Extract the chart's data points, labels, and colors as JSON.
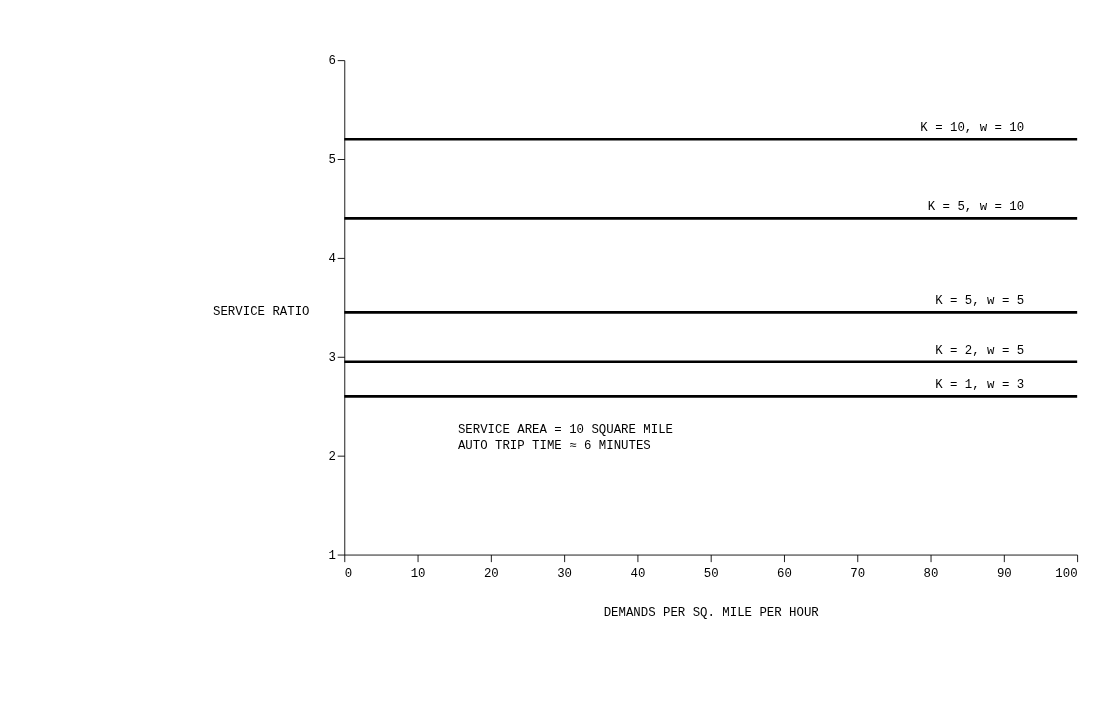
{
  "chart_data": {
    "type": "line",
    "xlabel": "DEMANDS PER SQ. MILE PER HOUR",
    "ylabel": "SERVICE RATIO",
    "xlim": [
      0,
      100
    ],
    "xticks": [
      0,
      10,
      20,
      30,
      40,
      50,
      60,
      70,
      80,
      90,
      100
    ],
    "ylim": [
      1,
      6
    ],
    "yticks": [
      1,
      2,
      3,
      4,
      5,
      6
    ],
    "grid": false,
    "marker": "none",
    "line_style": "solid",
    "x": [
      0,
      100
    ],
    "series": [
      {
        "name": "K = 10, w = 10",
        "color": "#000000",
        "values": [
          5.2,
          5.2
        ]
      },
      {
        "name": "K = 5, w = 10",
        "color": "#000000",
        "values": [
          4.4,
          4.4
        ]
      },
      {
        "name": "K = 5, w = 5",
        "color": "#000000",
        "values": [
          3.45,
          3.45
        ]
      },
      {
        "name": "K = 2, w = 5",
        "color": "#000000",
        "values": [
          2.95,
          2.95
        ]
      },
      {
        "name": "K = 1, w = 3",
        "color": "#000000",
        "values": [
          2.6,
          2.6
        ]
      }
    ],
    "annotations": [
      "SERVICE AREA = 10 SQUARE MILE",
      "AUTO TRIP TIME ≈ 6 MINUTES"
    ]
  }
}
